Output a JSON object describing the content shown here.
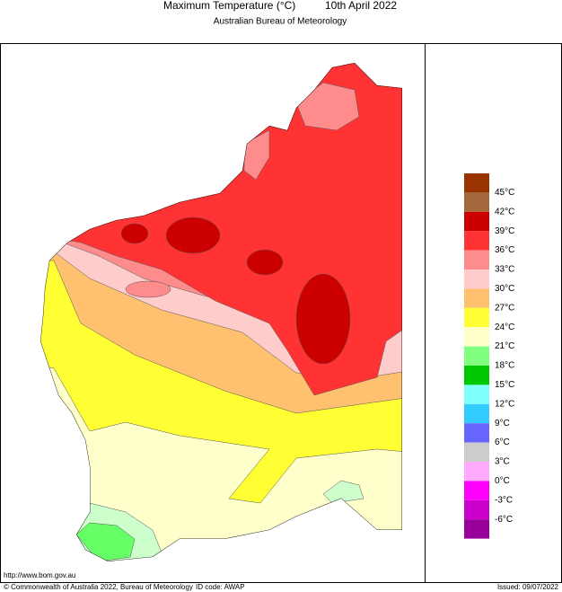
{
  "header": {
    "title": "Maximum Temperature (°C)",
    "date": "10th April 2022",
    "subtitle": "Australian Bureau of Meteorology"
  },
  "legend": {
    "labels": [
      "45°C",
      "42°C",
      "39°C",
      "36°C",
      "33°C",
      "30°C",
      "27°C",
      "24°C",
      "21°C",
      "18°C",
      "15°C",
      "12°C",
      "9°C",
      "6°C",
      "3°C",
      "0°C",
      "-3°C",
      "-6°C"
    ],
    "colors": [
      "#993300",
      "#a5683c",
      "#cc0000",
      "#ff3333",
      "#ff8c8c",
      "#ffcccc",
      "#ffc070",
      "#ffff33",
      "#ffffcc",
      "#80ff80",
      "#00c800",
      "#80ffff",
      "#33ccff",
      "#6666ff",
      "#cccccc",
      "#ffaaff",
      "#ff00ff",
      "#cc00cc",
      "#990099"
    ]
  },
  "footer": {
    "url": "http://www.bom.gov.au",
    "copyright": "© Commonwealth of Australia 2022, Bureau of Meteorology",
    "id_code": "ID code: AWAP",
    "issued": "Issued: 09/07/2022"
  }
}
